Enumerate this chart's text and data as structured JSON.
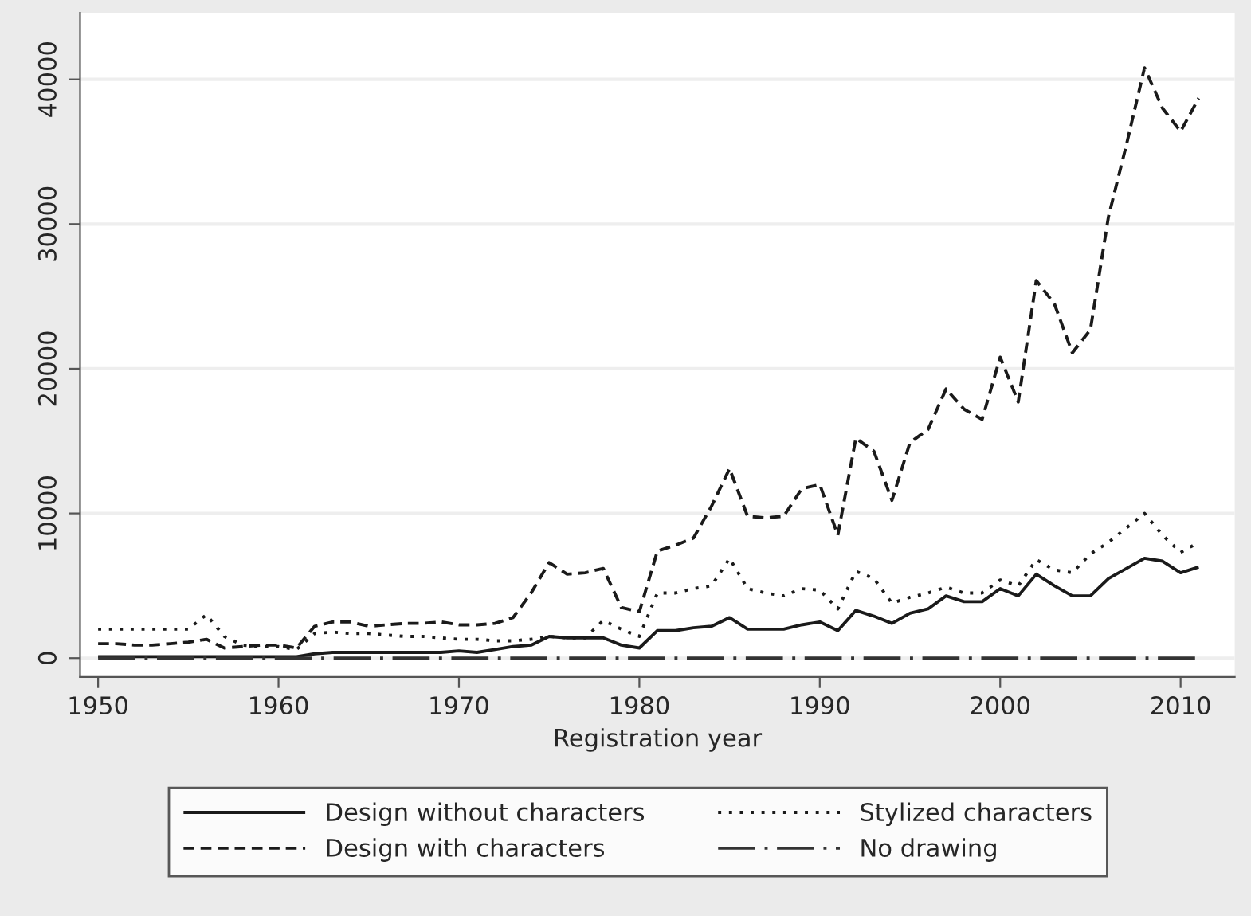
{
  "chart_data": {
    "type": "line",
    "xlabel": "Registration year",
    "x": [
      1950,
      1951,
      1952,
      1953,
      1954,
      1955,
      1956,
      1957,
      1958,
      1959,
      1960,
      1961,
      1962,
      1963,
      1964,
      1965,
      1966,
      1967,
      1968,
      1969,
      1970,
      1971,
      1972,
      1973,
      1974,
      1975,
      1976,
      1977,
      1978,
      1979,
      1980,
      1981,
      1982,
      1983,
      1984,
      1985,
      1986,
      1987,
      1988,
      1989,
      1990,
      1991,
      1992,
      1993,
      1994,
      1995,
      1996,
      1997,
      1998,
      1999,
      2000,
      2001,
      2002,
      2003,
      2004,
      2005,
      2006,
      2007,
      2008,
      2009,
      2010,
      2011
    ],
    "series": [
      {
        "name": "Design without characters",
        "color": "#1a1a1a",
        "line_style": "solid",
        "values": [
          100,
          100,
          100,
          100,
          100,
          100,
          100,
          100,
          100,
          100,
          100,
          100,
          300,
          400,
          400,
          400,
          400,
          400,
          400,
          400,
          500,
          400,
          600,
          800,
          900,
          1500,
          1400,
          1400,
          1400,
          900,
          700,
          1900,
          1900,
          2100,
          2200,
          2800,
          2000,
          2000,
          2000,
          2300,
          2500,
          1900,
          3300,
          2900,
          2400,
          3100,
          3400,
          4300,
          3900,
          3900,
          4800,
          4300,
          5800,
          5000,
          4300,
          4300,
          5500,
          6200,
          6900,
          6700,
          5900,
          6300
        ]
      },
      {
        "name": "Design with characters",
        "color": "#1a1a1a",
        "line_style": "dashed",
        "values": [
          1000,
          1000,
          900,
          900,
          1000,
          1100,
          1300,
          700,
          800,
          900,
          900,
          700,
          2200,
          2500,
          2500,
          2200,
          2300,
          2400,
          2400,
          2500,
          2300,
          2300,
          2400,
          2800,
          4500,
          6600,
          5800,
          5900,
          6200,
          3500,
          3200,
          7400,
          7800,
          8300,
          10500,
          13100,
          9800,
          9700,
          9800,
          11700,
          12000,
          8500,
          15200,
          14300,
          10900,
          14900,
          15800,
          18600,
          17200,
          16500,
          20800,
          17700,
          26100,
          24500,
          21100,
          22700,
          30500,
          35500,
          40800,
          38000,
          36400,
          38700
        ]
      },
      {
        "name": "Stylized characters",
        "color": "#1a1a1a",
        "line_style": "dotted",
        "values": [
          2000,
          2000,
          2000,
          2000,
          2000,
          2000,
          3000,
          1500,
          900,
          800,
          800,
          600,
          1700,
          1800,
          1700,
          1700,
          1600,
          1500,
          1500,
          1400,
          1300,
          1300,
          1200,
          1200,
          1300,
          1500,
          1400,
          1400,
          2600,
          2000,
          1500,
          4500,
          4500,
          4800,
          5000,
          6900,
          4800,
          4500,
          4300,
          4800,
          4700,
          3400,
          6000,
          5500,
          3800,
          4200,
          4500,
          4900,
          4500,
          4500,
          5400,
          5000,
          6800,
          6100,
          5900,
          7200,
          8000,
          9000,
          10000,
          8500,
          7300,
          8000
        ]
      },
      {
        "name": "No drawing",
        "color": "#333333",
        "line_style": "dashdot",
        "values": [
          0,
          0,
          0,
          0,
          0,
          0,
          0,
          0,
          0,
          0,
          0,
          0,
          0,
          0,
          0,
          0,
          0,
          0,
          0,
          0,
          0,
          0,
          0,
          0,
          0,
          0,
          0,
          0,
          0,
          0,
          0,
          0,
          0,
          0,
          0,
          0,
          0,
          0,
          0,
          0,
          0,
          0,
          0,
          0,
          0,
          0,
          0,
          0,
          0,
          0,
          0,
          0,
          0,
          0,
          0,
          0,
          0,
          0,
          0,
          0,
          0,
          0
        ]
      }
    ],
    "xlim": [
      1949,
      2013
    ],
    "xticks": [
      1950,
      1960,
      1970,
      1980,
      1990,
      2000,
      2010
    ],
    "ylim": [
      -1300,
      44600
    ],
    "yticks": [
      0,
      10000,
      20000,
      30000,
      40000
    ],
    "grid": "y",
    "legend": "bottom",
    "marker": "none"
  }
}
